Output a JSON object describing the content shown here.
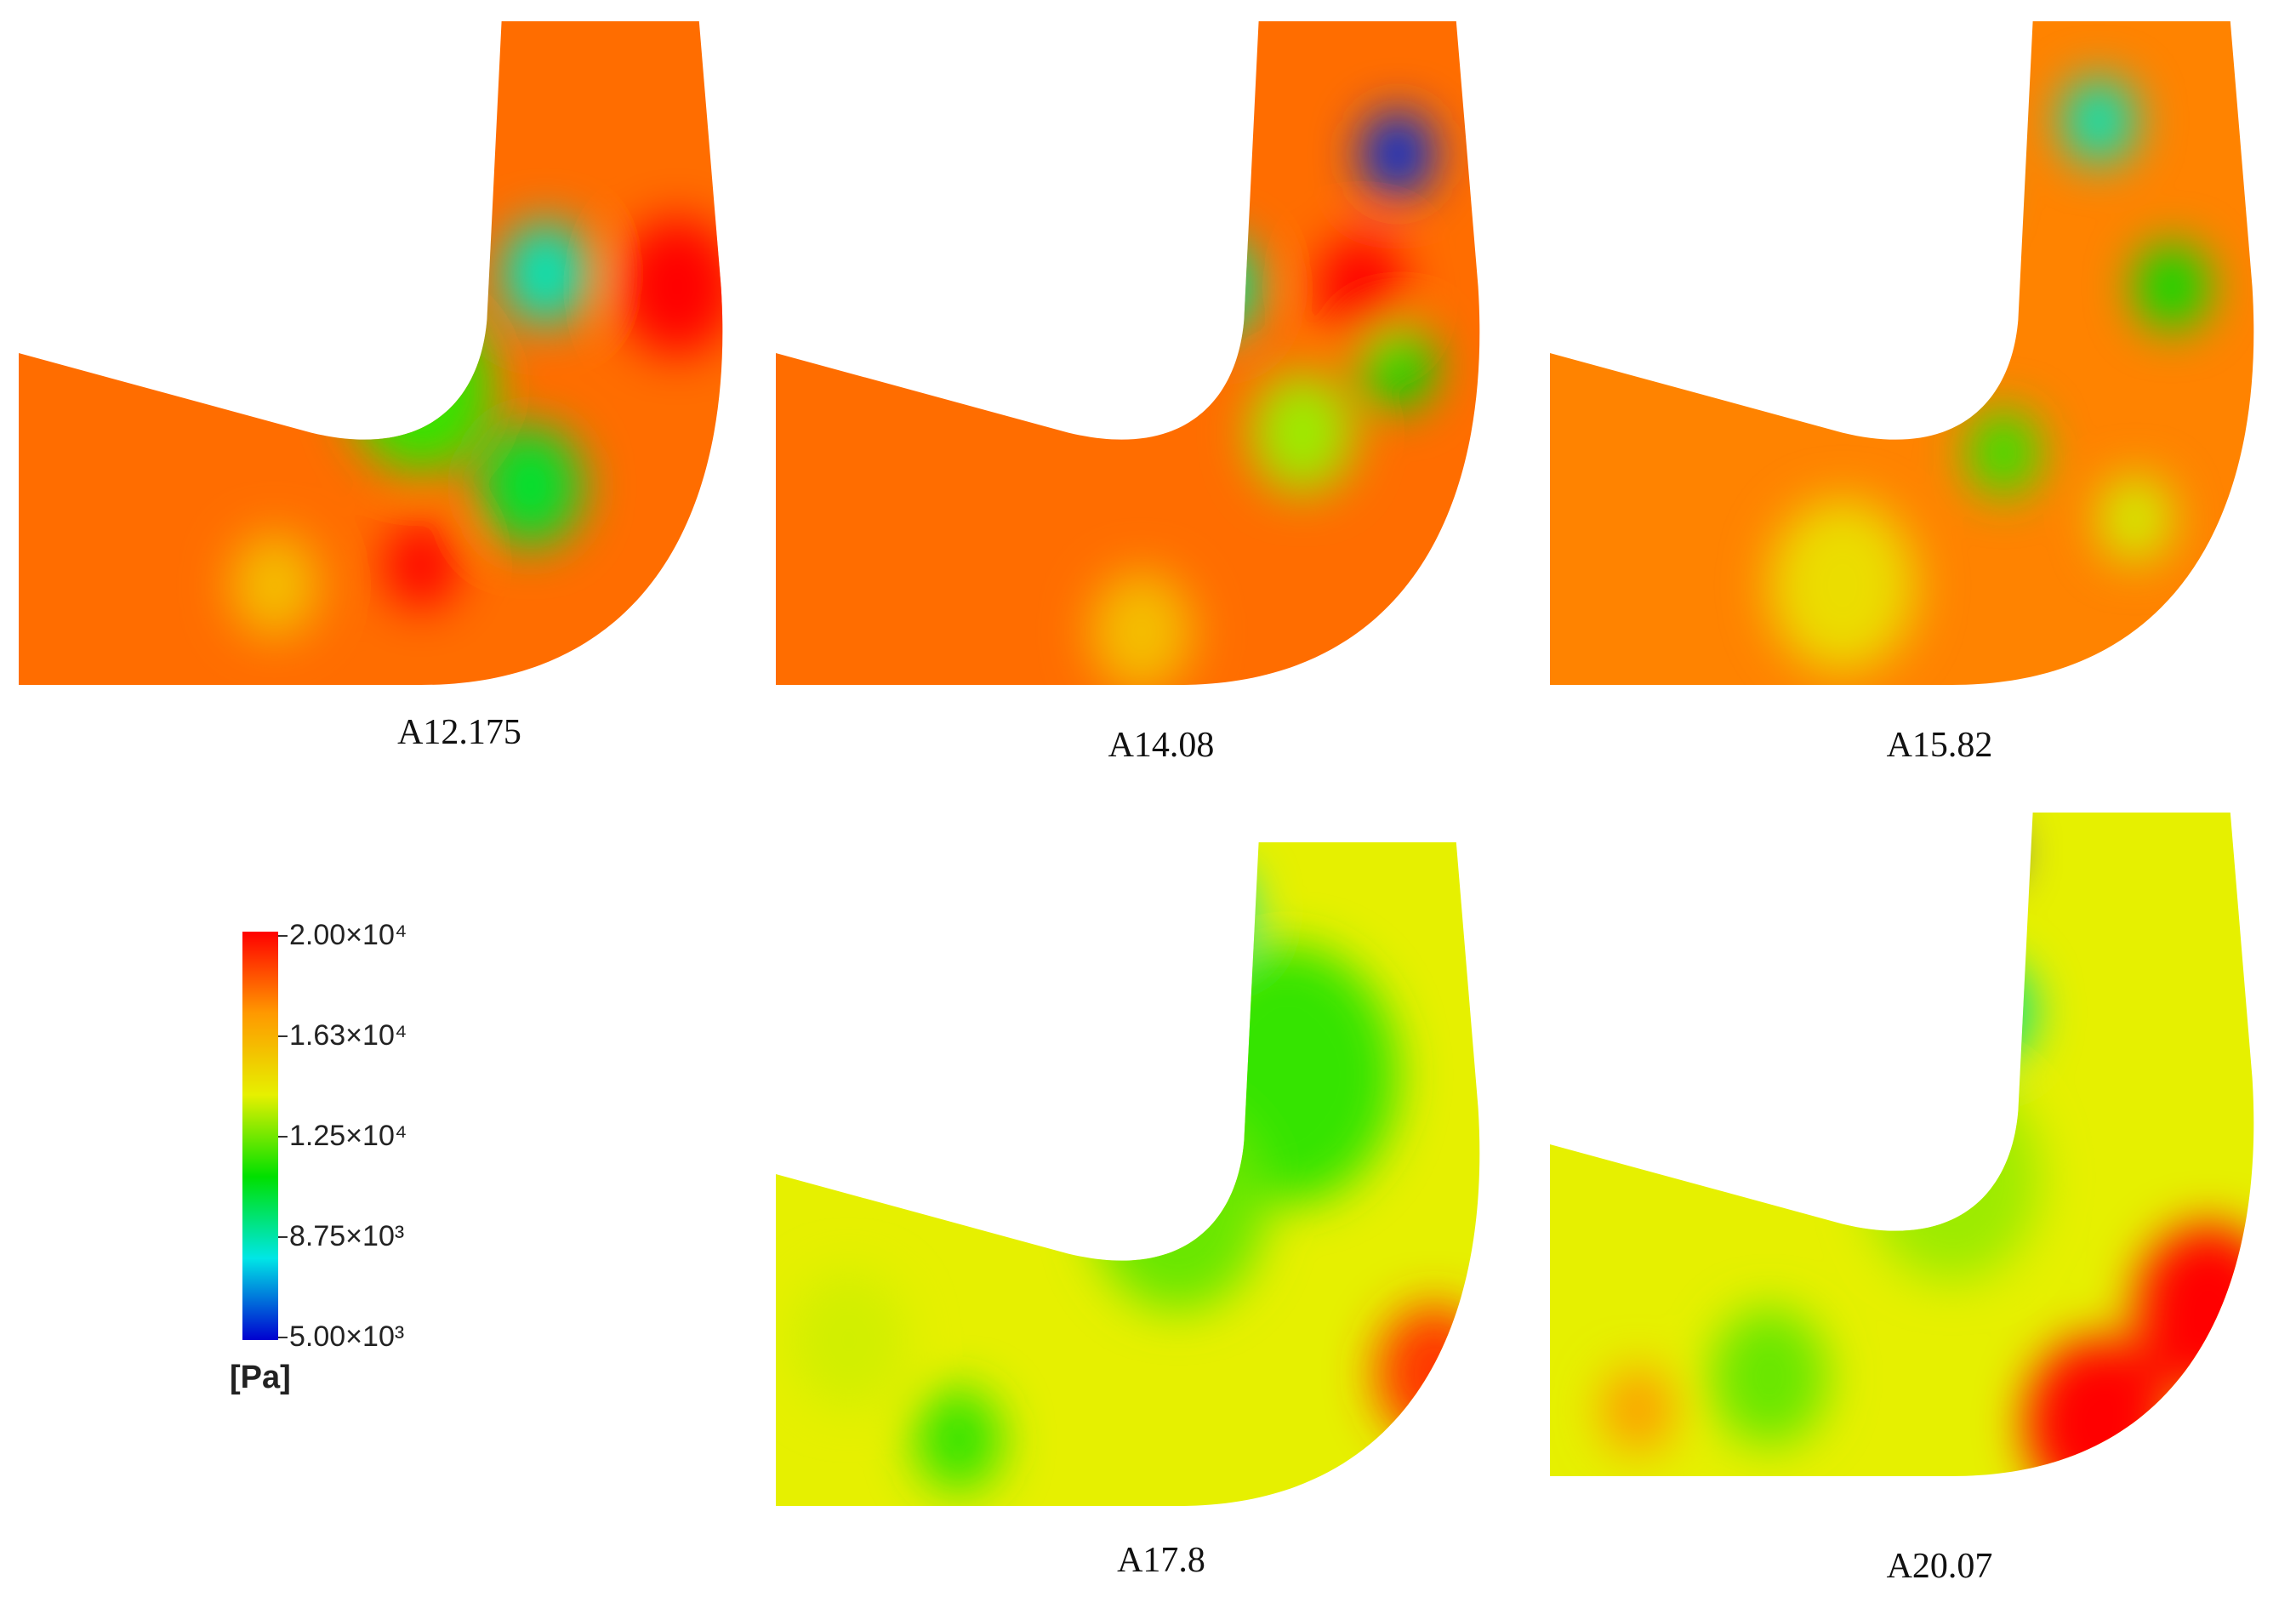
{
  "panels": [
    {
      "label": "A12.175",
      "blobs": [
        {
          "u": 0.4,
          "v": 0.08,
          "r": 0.09,
          "c": 0.0
        },
        {
          "u": 0.4,
          "v": 0.18,
          "r": 0.07,
          "c": 0.05
        },
        {
          "u": 0.72,
          "v": 0.38,
          "r": 0.06,
          "c": 0.3
        },
        {
          "u": 0.55,
          "v": 0.55,
          "r": 0.1,
          "c": 0.55
        },
        {
          "u": 0.7,
          "v": 0.7,
          "r": 0.07,
          "c": 0.45
        },
        {
          "u": 0.35,
          "v": 0.85,
          "r": 0.06,
          "c": 0.8
        },
        {
          "u": 0.9,
          "v": 0.4,
          "r": 0.08,
          "c": 1.0
        },
        {
          "u": 0.55,
          "v": 0.82,
          "r": 0.05,
          "c": 1.0
        }
      ],
      "base": 0.9
    },
    {
      "label": "A14.08",
      "blobs": [
        {
          "u": 0.42,
          "v": 0.05,
          "r": 0.05,
          "c": 0.0
        },
        {
          "u": 0.85,
          "v": 0.2,
          "r": 0.05,
          "c": 0.05
        },
        {
          "u": 0.6,
          "v": 0.4,
          "r": 0.06,
          "c": 0.35
        },
        {
          "u": 0.85,
          "v": 0.52,
          "r": 0.05,
          "c": 0.5
        },
        {
          "u": 0.72,
          "v": 0.62,
          "r": 0.07,
          "c": 0.65
        },
        {
          "u": 0.5,
          "v": 0.92,
          "r": 0.07,
          "c": 0.8
        },
        {
          "u": 0.8,
          "v": 0.4,
          "r": 0.06,
          "c": 1.0
        }
      ],
      "base": 0.9
    },
    {
      "label": "A15.82",
      "blobs": [
        {
          "u": 0.55,
          "v": 0.04,
          "r": 0.04,
          "c": 0.0
        },
        {
          "u": 0.75,
          "v": 0.15,
          "r": 0.05,
          "c": 0.3
        },
        {
          "u": 0.55,
          "v": 0.25,
          "r": 0.05,
          "c": 0.3
        },
        {
          "u": 0.85,
          "v": 0.4,
          "r": 0.05,
          "c": 0.5
        },
        {
          "u": 0.62,
          "v": 0.65,
          "r": 0.05,
          "c": 0.55
        },
        {
          "u": 0.8,
          "v": 0.75,
          "r": 0.05,
          "c": 0.7
        },
        {
          "u": 0.4,
          "v": 0.85,
          "r": 0.1,
          "c": 0.75
        }
      ],
      "base": 0.88
    },
    {
      "label": "A17.8",
      "blobs": [
        {
          "u": 0.6,
          "v": 0.1,
          "r": 0.05,
          "c": 0.3
        },
        {
          "u": 0.7,
          "v": 0.35,
          "r": 0.15,
          "c": 0.55
        },
        {
          "u": 0.55,
          "v": 0.55,
          "r": 0.12,
          "c": 0.6
        },
        {
          "u": 0.25,
          "v": 0.9,
          "r": 0.06,
          "c": 0.55
        },
        {
          "u": 0.1,
          "v": 0.75,
          "r": 0.08,
          "c": 0.7
        },
        {
          "u": 0.9,
          "v": 0.8,
          "r": 0.08,
          "c": 0.95
        }
      ],
      "base": 0.72
    },
    {
      "label": "A20.07",
      "blobs": [
        {
          "u": 0.6,
          "v": 0.06,
          "r": 0.03,
          "c": 0.0
        },
        {
          "u": 0.6,
          "v": 0.3,
          "r": 0.06,
          "c": 0.35
        },
        {
          "u": 0.55,
          "v": 0.55,
          "r": 0.12,
          "c": 0.65
        },
        {
          "u": 0.3,
          "v": 0.85,
          "r": 0.08,
          "c": 0.6
        },
        {
          "u": 0.9,
          "v": 0.75,
          "r": 0.1,
          "c": 1.0
        },
        {
          "u": 0.75,
          "v": 0.92,
          "r": 0.1,
          "c": 1.0
        },
        {
          "u": 0.12,
          "v": 0.9,
          "r": 0.05,
          "c": 0.85
        }
      ],
      "base": 0.72
    }
  ],
  "legend": {
    "ticks": [
      "2.00×10⁴",
      "1.63×10⁴",
      "1.25×10⁴",
      "8.75×10³",
      "5.00×10³"
    ],
    "unit": "[Pa]",
    "colors": [
      "#ff0000",
      "#ff9900",
      "#e6f000",
      "#00e000",
      "#00e6e6",
      "#0000d0"
    ]
  }
}
